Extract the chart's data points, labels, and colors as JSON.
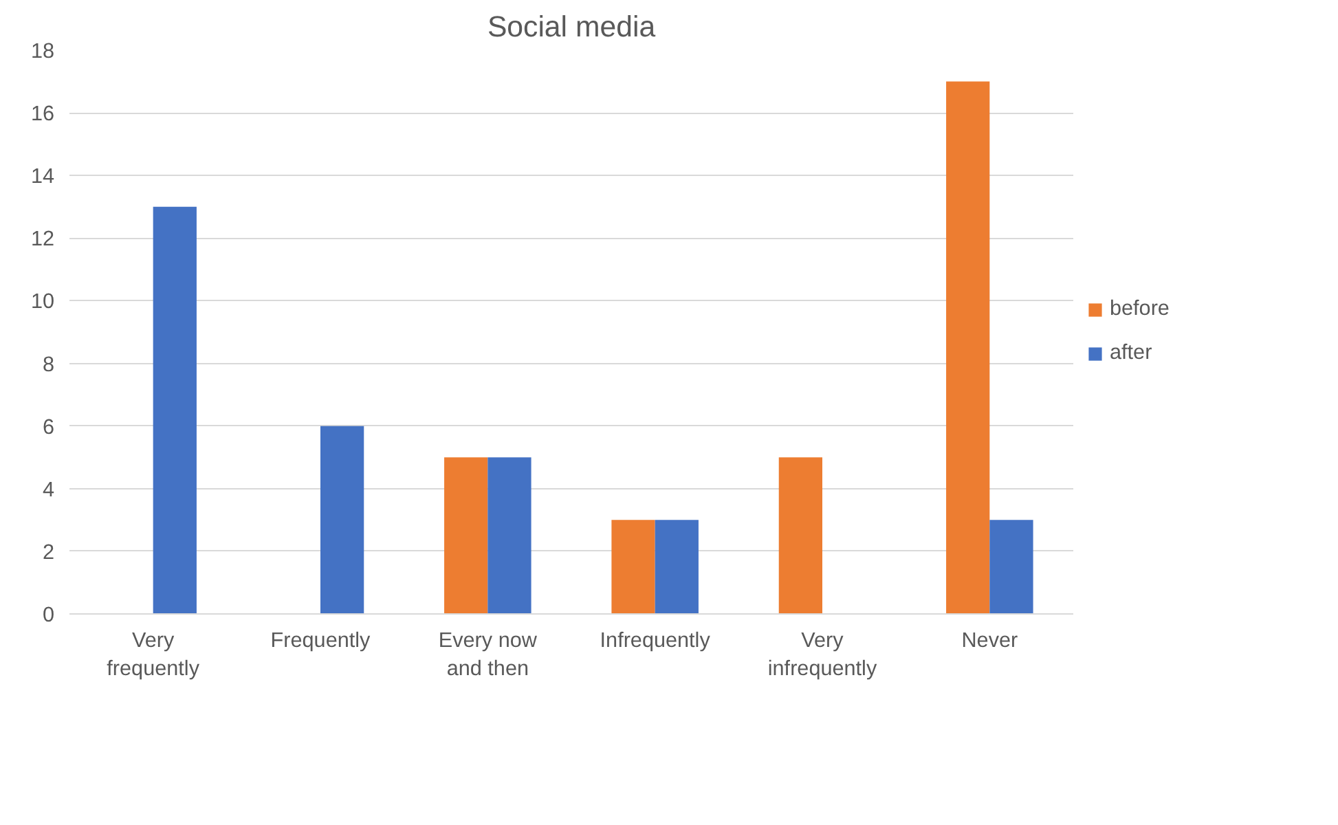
{
  "chart_data": {
    "type": "bar",
    "title": "Social media",
    "categories": [
      "Very frequently",
      "Frequently",
      "Every now and then",
      "Infrequently",
      "Very infrequently",
      "Never"
    ],
    "series": [
      {
        "name": "before",
        "color": "#ed7d31",
        "values": [
          0,
          0,
          5,
          3,
          5,
          17
        ]
      },
      {
        "name": "after",
        "color": "#4472c4",
        "values": [
          13,
          6,
          5,
          3,
          0,
          3
        ]
      }
    ],
    "ylim": [
      0,
      18
    ],
    "yticks": [
      0,
      2,
      4,
      6,
      8,
      10,
      12,
      14,
      16,
      18
    ],
    "grid": "y",
    "legend": "right"
  }
}
